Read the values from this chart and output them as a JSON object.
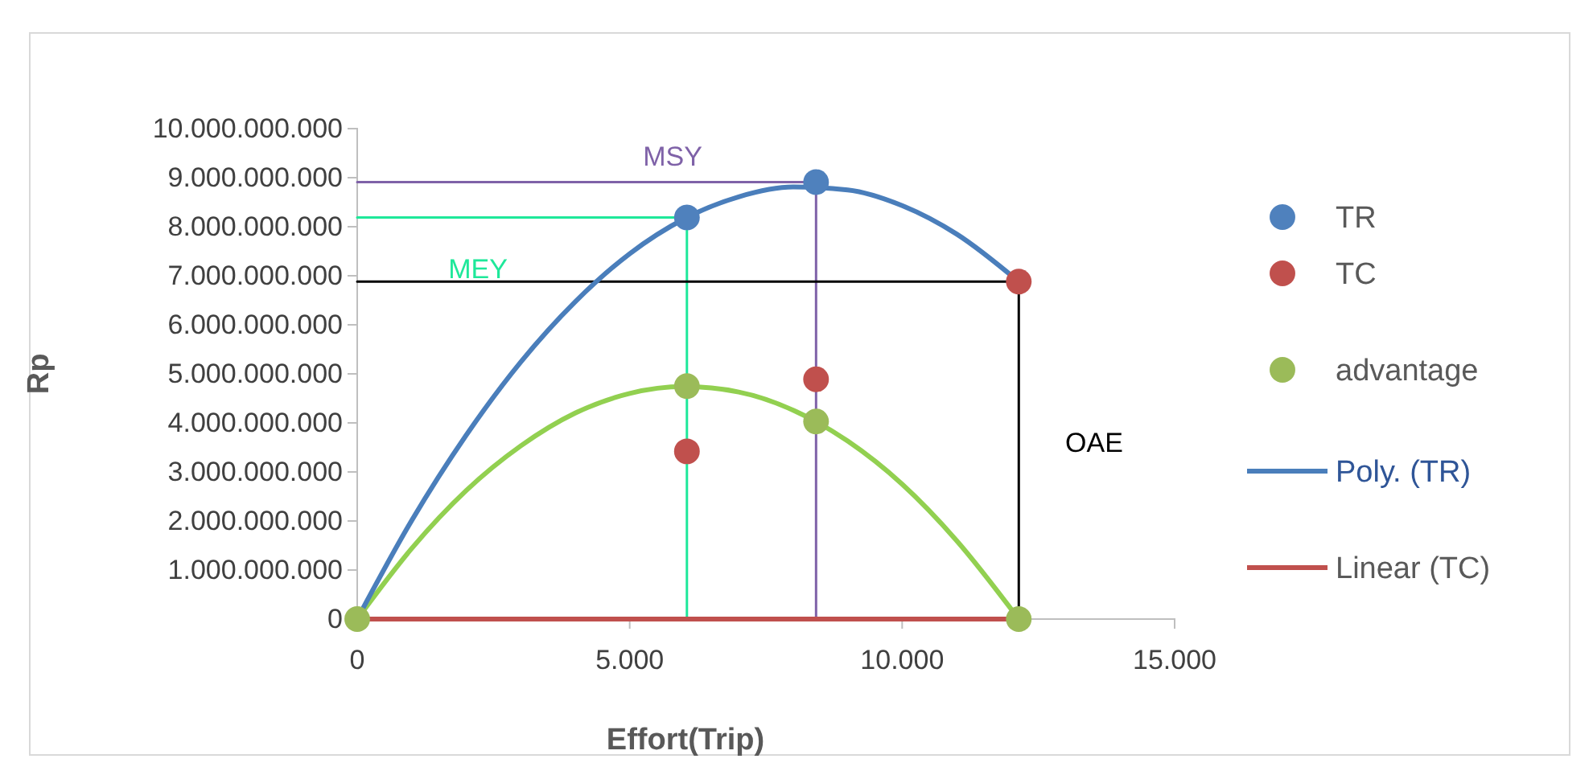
{
  "chart_data": {
    "type": "scatter",
    "xlabel": "Effort(Trip)",
    "ylabel": "Rp",
    "xlim": [
      0,
      15000
    ],
    "ylim": [
      0,
      10000000000
    ],
    "xticks": [
      0,
      {
        "value": 5000,
        "label": "5.000"
      },
      {
        "value": 10000,
        "label": "10.000"
      },
      {
        "value": 15000,
        "label": "15.000"
      }
    ],
    "yticks": [
      0,
      {
        "value": 1000000000,
        "label": "1.000.000.000"
      },
      {
        "value": 2000000000,
        "label": "2.000.000.000"
      },
      {
        "value": 3000000000,
        "label": "3.000.000.000"
      },
      {
        "value": 4000000000,
        "label": "4.000.000.000"
      },
      {
        "value": 5000000000,
        "label": "5.000.000.000"
      },
      {
        "value": 6000000000,
        "label": "6.000.000.000"
      },
      {
        "value": 7000000000,
        "label": "7.000.000.000"
      },
      {
        "value": 8000000000,
        "label": "8.000.000.000"
      },
      {
        "value": 9000000000,
        "label": "9.000.000.000"
      },
      {
        "value": 10000000000,
        "label": "10.000.000.000"
      }
    ],
    "marker": "circle",
    "legend": "right",
    "grid": false,
    "series": [
      {
        "type": "line",
        "marker": "none",
        "color": "#7f62a8",
        "x": [
          0,
          8420,
          8420
        ],
        "values": [
          8910000000,
          8910000000,
          0
        ]
      },
      {
        "type": "line",
        "marker": "none",
        "color": "#1ee89a",
        "x": [
          0,
          6050,
          6050
        ],
        "values": [
          8190000000,
          8190000000,
          0
        ]
      },
      {
        "type": "line",
        "marker": "none",
        "color": "#000000",
        "x": [
          0,
          12140,
          12140
        ],
        "values": [
          6880000000,
          6880000000,
          0
        ]
      },
      {
        "type": "line",
        "marker": "none",
        "color": "#92d050",
        "x": [
          0,
          1000,
          2000,
          3000,
          4000,
          5000,
          6000,
          7000,
          8000,
          9000,
          10000,
          11000,
          12140
        ],
        "values": [
          0,
          1440000000,
          2620000000,
          3530000000,
          4200000000,
          4600000000,
          4740000000,
          4630000000,
          4260000000,
          3630000000,
          2750000000,
          1600000000,
          0
        ]
      },
      {
        "name": "Poly. (TR)",
        "type": "line",
        "marker": "none",
        "color": "#4a7ebb",
        "x": [
          0,
          1000,
          2000,
          3000,
          4000,
          5000,
          6000,
          7000,
          8000,
          9000,
          10000,
          11000,
          12140
        ],
        "values": [
          0,
          2010000000,
          3750000000,
          5240000000,
          6470000000,
          7450000000,
          8160000000,
          8610000000,
          8810000000,
          8750000000,
          8430000000,
          7850000000,
          6880000000
        ]
      },
      {
        "name": "Linear (TC)",
        "type": "line",
        "marker": "none",
        "color": "#c0504d",
        "x": [
          0,
          12140
        ],
        "values": [
          0,
          0
        ]
      },
      {
        "name": "TR",
        "color": "#4f81bd",
        "x": [
          6050,
          8420
        ],
        "values": [
          8190000000,
          8910000000
        ]
      },
      {
        "name": "TC",
        "color": "#c0504d",
        "x": [
          6050,
          8420,
          12140
        ],
        "values": [
          3420000000,
          4890000000,
          6880000000
        ]
      },
      {
        "name": "advantage",
        "color": "#9bbb59",
        "x": [
          0,
          6050,
          8420,
          12140
        ],
        "values": [
          0,
          4750000000,
          4030000000,
          0
        ]
      }
    ],
    "annotations": [
      "MSY",
      "MEY",
      "OAE"
    ]
  }
}
